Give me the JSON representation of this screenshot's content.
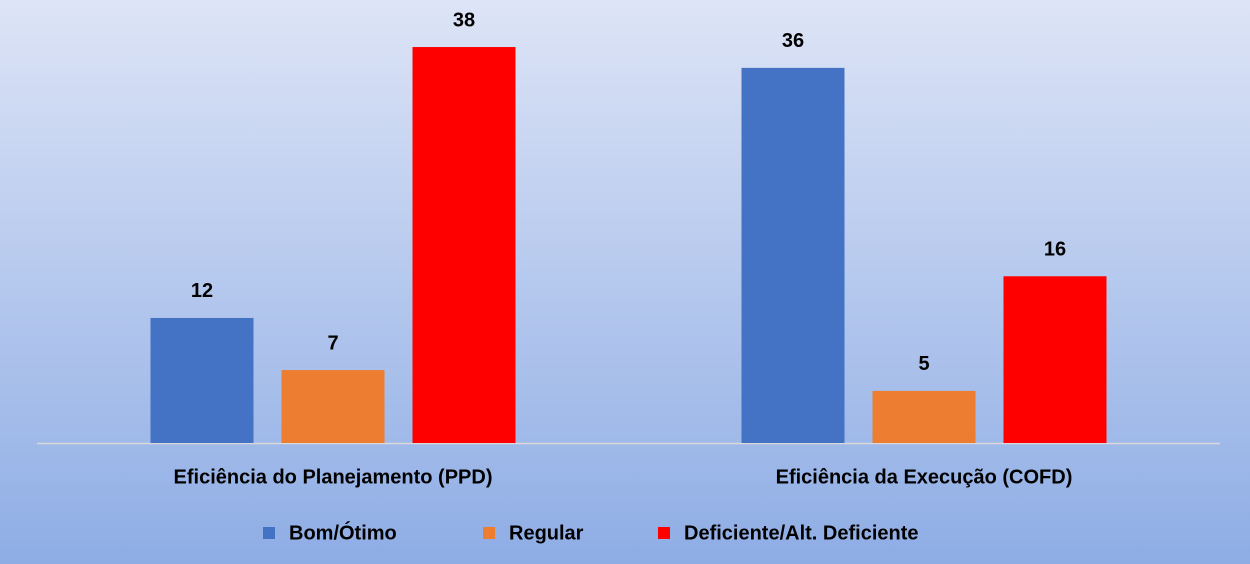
{
  "chart_data": {
    "type": "bar",
    "categories": [
      "Eficiência do Planejamento (PPD)",
      "Eficiência da Execução (COFD)"
    ],
    "series": [
      {
        "name": "Bom/Ótimo",
        "color": "#4472c4",
        "values": [
          12,
          36
        ]
      },
      {
        "name": "Regular",
        "color": "#ed7d31",
        "values": [
          7,
          5
        ]
      },
      {
        "name": "Deficiente/Alt. Deficiente",
        "color": "#ff0000",
        "values": [
          38,
          16
        ]
      }
    ]
  }
}
